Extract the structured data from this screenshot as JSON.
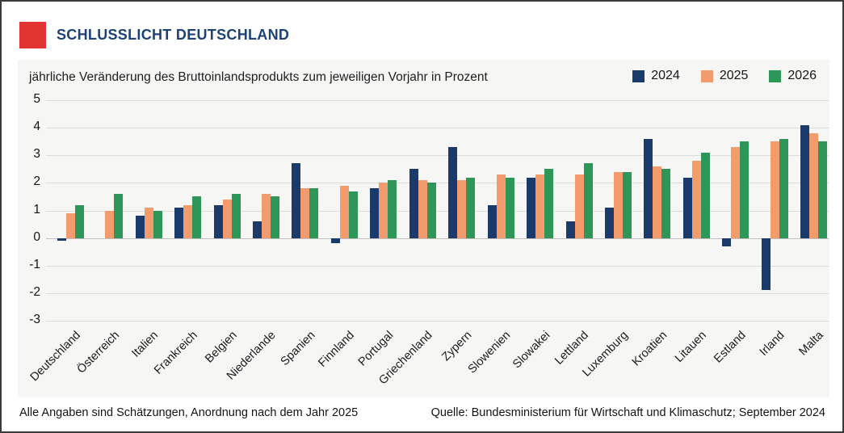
{
  "header": {
    "title": "SCHLUSSLICHT DEUTSCHLAND",
    "accent_color": "#e23430",
    "title_color": "#1c4377"
  },
  "subtitle": "jährliche Veränderung des Bruttoinlandsprodukts zum jeweiligen Vorjahr in Prozent",
  "legend": [
    {
      "label": "2024",
      "color": "#1a3a6b"
    },
    {
      "label": "2025",
      "color": "#f29b6c"
    },
    {
      "label": "2026",
      "color": "#2d9658"
    }
  ],
  "footer": {
    "note": "Alle Angaben sind Schätzungen, Anordnung nach dem Jahr 2025",
    "source": "Quelle: Bundesministerium für Wirtschaft und Klimaschutz; September 2024"
  },
  "chart_data": {
    "type": "bar",
    "title": "jährliche Veränderung des Bruttoinlandsprodukts zum jeweiligen Vorjahr in Prozent",
    "categories": [
      "Deutschland",
      "Österreich",
      "Italien",
      "Frankreich",
      "Belgien",
      "Niederlande",
      "Spanien",
      "Finnland",
      "Portugal",
      "Griechenland",
      "Zypern",
      "Slowenien",
      "Slowakei",
      "Lettland",
      "Luxemburg",
      "Kroatien",
      "Litauen",
      "Estland",
      "Irland",
      "Malta"
    ],
    "series": [
      {
        "name": "2024",
        "color": "#1a3a6b",
        "values": [
          -0.1,
          0.0,
          0.8,
          1.1,
          1.2,
          0.6,
          2.7,
          -0.2,
          1.8,
          2.5,
          3.3,
          1.2,
          2.2,
          0.6,
          1.1,
          3.6,
          2.2,
          -0.3,
          -1.9,
          4.1
        ]
      },
      {
        "name": "2025",
        "color": "#f29b6c",
        "values": [
          0.9,
          1.0,
          1.1,
          1.2,
          1.4,
          1.6,
          1.8,
          1.9,
          2.0,
          2.1,
          2.1,
          2.3,
          2.3,
          2.3,
          2.4,
          2.6,
          2.8,
          3.3,
          3.5,
          3.8
        ]
      },
      {
        "name": "2026",
        "color": "#2d9658",
        "values": [
          1.2,
          1.6,
          1.0,
          1.5,
          1.6,
          1.5,
          1.8,
          1.7,
          2.1,
          2.0,
          2.2,
          2.2,
          2.5,
          2.7,
          2.4,
          2.5,
          3.1,
          3.5,
          3.6,
          3.5
        ]
      }
    ],
    "xlabel": "",
    "ylabel": "Prozent",
    "ylim": [
      -3,
      5
    ],
    "ytick_step": 1,
    "grid": true,
    "legend_position": "top-right",
    "grid_color": "#dcdcdc",
    "zero_line_color": "#bfbfbf"
  }
}
